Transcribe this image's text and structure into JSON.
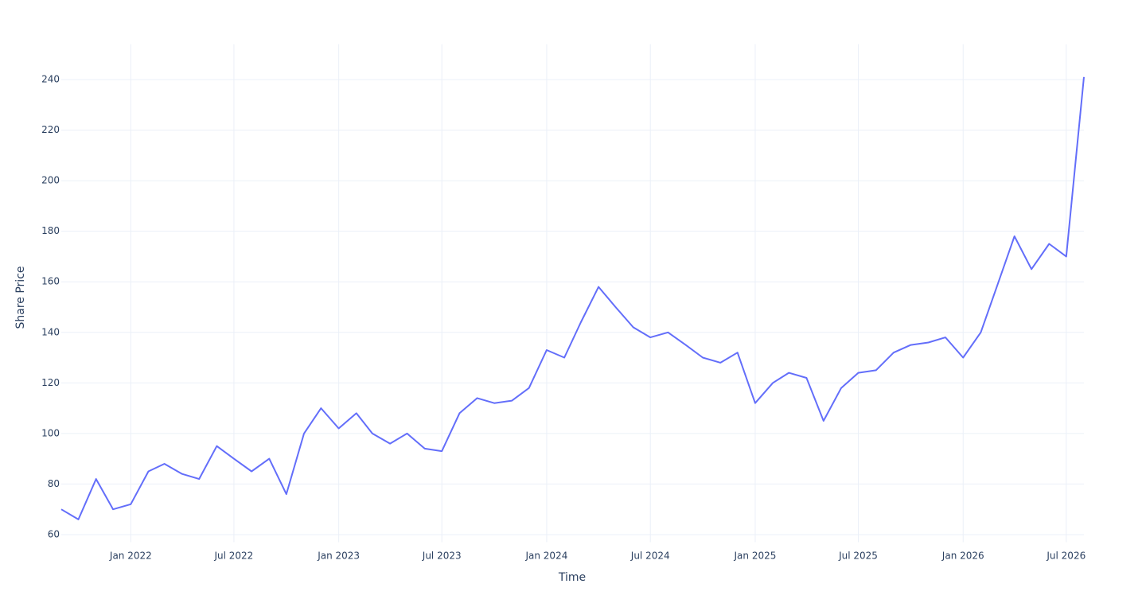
{
  "chart_data": {
    "type": "line",
    "x_label": "Time",
    "y_label": "Share Price",
    "x": [
      "2021-09",
      "2021-10",
      "2021-11",
      "2021-12",
      "2022-01",
      "2022-02",
      "2022-03",
      "2022-04",
      "2022-05",
      "2022-06",
      "2022-07",
      "2022-08",
      "2022-09",
      "2022-10",
      "2022-11",
      "2022-12",
      "2023-01",
      "2023-02",
      "2023-03",
      "2023-04",
      "2023-05",
      "2023-06",
      "2023-07",
      "2023-08",
      "2023-09",
      "2023-10",
      "2023-11",
      "2023-12",
      "2024-01",
      "2024-02",
      "2024-03",
      "2024-04",
      "2024-05",
      "2024-06",
      "2024-07",
      "2024-08",
      "2024-09",
      "2024-10",
      "2024-11",
      "2024-12",
      "2025-01",
      "2025-02",
      "2025-03",
      "2025-04",
      "2025-05",
      "2025-06",
      "2025-07",
      "2025-08",
      "2025-09",
      "2025-10",
      "2025-11",
      "2025-12",
      "2026-01",
      "2026-02",
      "2026-03",
      "2026-04",
      "2026-05",
      "2026-06",
      "2026-07",
      "2026-08"
    ],
    "series": [
      {
        "color": "#636efa",
        "values": [
          70,
          66,
          82,
          70,
          72,
          85,
          88,
          84,
          82,
          95,
          90,
          85,
          90,
          76,
          100,
          110,
          102,
          108,
          100,
          96,
          100,
          94,
          93,
          108,
          114,
          112,
          113,
          118,
          133,
          130,
          144,
          158,
          150,
          142,
          138,
          140,
          135,
          130,
          128,
          132,
          112,
          120,
          124,
          122,
          105,
          118,
          124,
          125,
          132,
          135,
          136,
          138,
          130,
          140,
          158,
          178,
          165,
          175,
          170,
          241
        ]
      }
    ],
    "xlim": [
      "2021-09",
      "2026-08"
    ],
    "xticks": [
      {
        "value": "2022-01",
        "label": "Jan 2022"
      },
      {
        "value": "2022-07",
        "label": "Jul 2022"
      },
      {
        "value": "2023-01",
        "label": "Jan 2023"
      },
      {
        "value": "2023-07",
        "label": "Jul 2023"
      },
      {
        "value": "2024-01",
        "label": "Jan 2024"
      },
      {
        "value": "2024-07",
        "label": "Jul 2024"
      },
      {
        "value": "2025-01",
        "label": "Jan 2025"
      },
      {
        "value": "2025-07",
        "label": "Jul 2025"
      },
      {
        "value": "2026-01",
        "label": "Jan 2026"
      },
      {
        "value": "2026-07",
        "label": "Jul 2026"
      }
    ],
    "ylim": [
      57,
      254
    ],
    "yticks": [
      60,
      80,
      100,
      120,
      140,
      160,
      180,
      200,
      220,
      240
    ],
    "grid": true
  }
}
